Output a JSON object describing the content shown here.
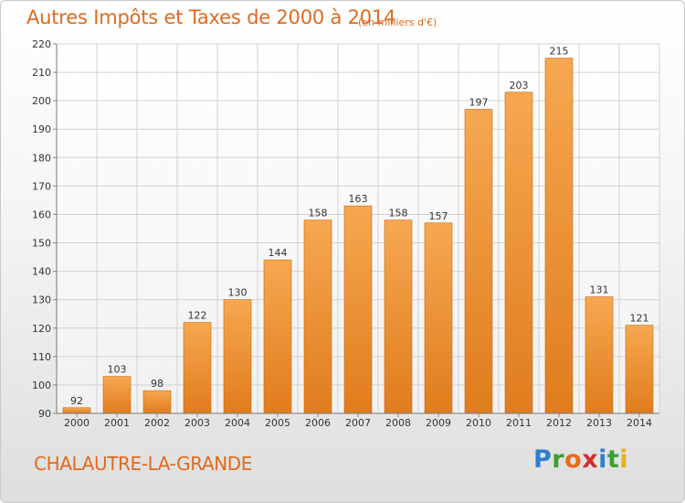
{
  "header": {
    "title": "Autres Impôts et Taxes de 2000 à 2014",
    "subtitle": "(en milliers d'€)"
  },
  "footer": {
    "commune": "CHALAUTRE-LA-GRANDE",
    "logo_letters": [
      "P",
      "r",
      "o",
      "x",
      "i",
      "t",
      "i"
    ],
    "logo_colors": [
      "#2f7fcf",
      "#3aa12f",
      "#e86a1c",
      "#d02f2f",
      "#2f7fcf",
      "#3aa12f",
      "#e8b11c"
    ]
  },
  "colors": {
    "bar_top": "#f6a851",
    "bar_bottom": "#e07c1d",
    "bar_edge": "#c86712",
    "grid": "#d2d2d2",
    "axis_text": "#333333"
  },
  "chart_data": {
    "type": "bar",
    "categories": [
      "2000",
      "2001",
      "2002",
      "2003",
      "2004",
      "2005",
      "2006",
      "2007",
      "2008",
      "2009",
      "2010",
      "2011",
      "2012",
      "2013",
      "2014"
    ],
    "values": [
      92,
      103,
      98,
      122,
      130,
      144,
      158,
      163,
      158,
      157,
      197,
      203,
      215,
      131,
      121
    ],
    "ylim": [
      90,
      220
    ],
    "yticks": [
      90,
      100,
      110,
      120,
      130,
      140,
      150,
      160,
      170,
      180,
      190,
      200,
      210,
      220
    ],
    "grid": true,
    "data_labels": true
  }
}
